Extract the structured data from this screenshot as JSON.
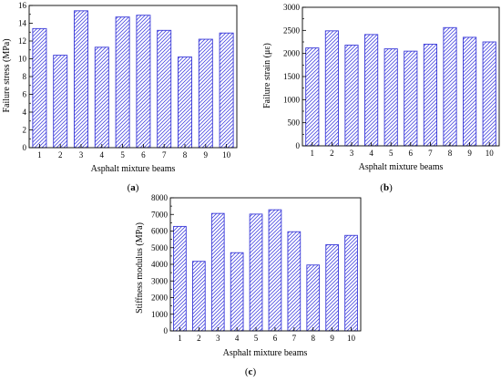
{
  "figure": {
    "colors": {
      "bar_stroke": "#3a3ad8",
      "hatch": "#4a4ae0",
      "axis": "#000000"
    },
    "panels": [
      {
        "id": "a",
        "label_open": "(",
        "label_letter": "a",
        "label_close": ")"
      },
      {
        "id": "b",
        "label_open": "(",
        "label_letter": "b",
        "label_close": ")"
      },
      {
        "id": "c",
        "label_open": "(",
        "label_letter": "c",
        "label_close": ")"
      }
    ]
  },
  "chart_data": [
    {
      "type": "bar",
      "panel": "a",
      "title": "",
      "xlabel": "Asphalt mixture beams",
      "ylabel": "Failure stress (MPa)",
      "categories": [
        "1",
        "2",
        "3",
        "4",
        "5",
        "6",
        "7",
        "8",
        "9",
        "10"
      ],
      "values": [
        13.4,
        10.4,
        15.4,
        11.3,
        14.7,
        14.9,
        13.2,
        10.2,
        12.2,
        12.9
      ],
      "ylim": [
        0,
        16
      ],
      "yticks": [
        0,
        2,
        4,
        6,
        8,
        10,
        12,
        14,
        16
      ],
      "grid": false,
      "legend": "none",
      "fill": "diagonal-hatch"
    },
    {
      "type": "bar",
      "panel": "b",
      "title": "",
      "xlabel": "Asphalt mixture beams",
      "ylabel": "Failure strain (με)",
      "categories": [
        "1",
        "2",
        "3",
        "4",
        "5",
        "6",
        "7",
        "8",
        "9",
        "10"
      ],
      "values": [
        2120,
        2490,
        2180,
        2410,
        2100,
        2050,
        2200,
        2560,
        2350,
        2250
      ],
      "ylim": [
        0,
        3000
      ],
      "yticks": [
        0,
        500,
        1000,
        1500,
        2000,
        2500,
        3000
      ],
      "grid": false,
      "legend": "none",
      "fill": "diagonal-hatch"
    },
    {
      "type": "bar",
      "panel": "c",
      "title": "",
      "xlabel": "Asphalt mixture beams",
      "ylabel": "Stiffness modulus (MPa)",
      "categories": [
        "1",
        "2",
        "3",
        "4",
        "5",
        "6",
        "7",
        "8",
        "9",
        "10"
      ],
      "values": [
        6280,
        4180,
        7060,
        4700,
        7020,
        7280,
        5960,
        3960,
        5180,
        5740
      ],
      "ylim": [
        0,
        8000
      ],
      "yticks": [
        0,
        1000,
        2000,
        3000,
        4000,
        5000,
        6000,
        7000,
        8000
      ],
      "grid": false,
      "legend": "none",
      "fill": "diagonal-hatch"
    }
  ]
}
